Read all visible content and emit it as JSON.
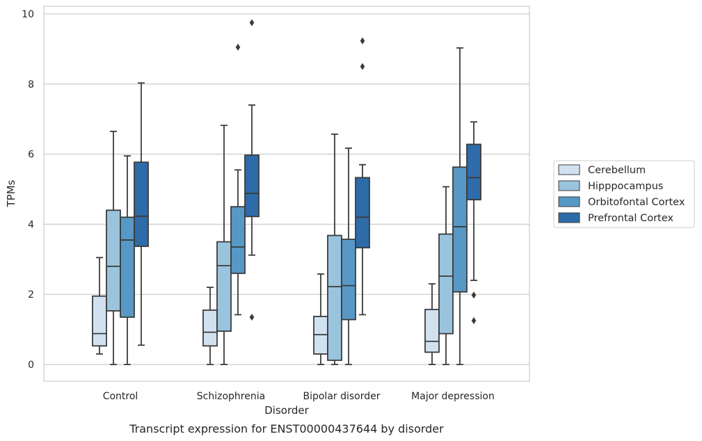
{
  "chart_data": {
    "type": "box",
    "title": "",
    "caption": "Transcript expression for ENST00000437644 by disorder",
    "xlabel": "Disorder",
    "ylabel": "TPMs",
    "ylim": [
      -0.45,
      10.2
    ],
    "yticks": [
      "0",
      "2",
      "4",
      "6",
      "8",
      "10"
    ],
    "grid": "horizontal",
    "legend_position": "right",
    "categories": [
      "Control",
      "Schizophrenia",
      "Bipolar disorder",
      "Major depression"
    ],
    "series": [
      {
        "name": "Cerebellum",
        "color": "#d2e1f0",
        "boxes": [
          {
            "whislo": 0.3,
            "q1": 0.53,
            "med": 0.88,
            "q3": 1.95,
            "whishi": 3.05,
            "fliers": []
          },
          {
            "whislo": 0.0,
            "q1": 0.53,
            "med": 0.92,
            "q3": 1.55,
            "whishi": 2.2,
            "fliers": []
          },
          {
            "whislo": 0.0,
            "q1": 0.3,
            "med": 0.85,
            "q3": 1.37,
            "whishi": 2.58,
            "fliers": []
          },
          {
            "whislo": 0.0,
            "q1": 0.35,
            "med": 0.66,
            "q3": 1.57,
            "whishi": 2.3,
            "fliers": []
          }
        ]
      },
      {
        "name": "Hipppocampus",
        "color": "#9ac4de",
        "boxes": [
          {
            "whislo": 0.0,
            "q1": 1.53,
            "med": 2.8,
            "q3": 4.4,
            "whishi": 6.65,
            "fliers": []
          },
          {
            "whislo": 0.0,
            "q1": 0.95,
            "med": 2.82,
            "q3": 3.5,
            "whishi": 6.82,
            "fliers": []
          },
          {
            "whislo": 0.0,
            "q1": 0.12,
            "med": 2.22,
            "q3": 3.68,
            "whishi": 6.57,
            "fliers": []
          },
          {
            "whislo": 0.0,
            "q1": 0.88,
            "med": 2.52,
            "q3": 3.72,
            "whishi": 5.07,
            "fliers": []
          }
        ]
      },
      {
        "name": "Orbitofontal Cortex",
        "color": "#5898c6",
        "boxes": [
          {
            "whislo": 0.0,
            "q1": 1.35,
            "med": 3.55,
            "q3": 4.2,
            "whishi": 5.95,
            "fliers": []
          },
          {
            "whislo": 1.42,
            "q1": 2.6,
            "med": 3.35,
            "q3": 4.5,
            "whishi": 5.55,
            "fliers": [
              9.05
            ]
          },
          {
            "whislo": 0.0,
            "q1": 1.28,
            "med": 2.25,
            "q3": 3.57,
            "whishi": 6.17,
            "fliers": []
          },
          {
            "whislo": 0.0,
            "q1": 2.07,
            "med": 3.93,
            "q3": 5.63,
            "whishi": 9.03,
            "fliers": []
          }
        ]
      },
      {
        "name": "Prefrontal Cortex",
        "color": "#2e6ba9",
        "boxes": [
          {
            "whislo": 0.55,
            "q1": 3.37,
            "med": 4.23,
            "q3": 5.77,
            "whishi": 8.03,
            "fliers": []
          },
          {
            "whislo": 3.12,
            "q1": 4.22,
            "med": 4.88,
            "q3": 5.97,
            "whishi": 7.4,
            "fliers": [
              1.35,
              9.75
            ]
          },
          {
            "whislo": 1.42,
            "q1": 3.33,
            "med": 4.2,
            "q3": 5.33,
            "whishi": 5.7,
            "fliers": [
              8.5,
              9.23
            ]
          },
          {
            "whislo": 2.4,
            "q1": 4.7,
            "med": 5.33,
            "q3": 6.28,
            "whishi": 6.92,
            "fliers": [
              1.25,
              1.98
            ]
          }
        ]
      }
    ]
  }
}
